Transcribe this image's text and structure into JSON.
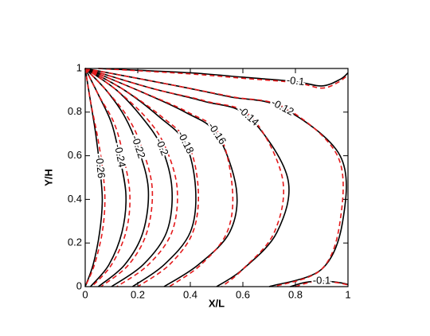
{
  "chart_data": {
    "type": "contour",
    "xlabel": "X/L",
    "ylabel": "Y/H",
    "xlim": [
      0,
      1
    ],
    "ylim": [
      0,
      1
    ],
    "xticks": [
      0,
      0.2,
      0.4,
      0.6,
      0.8,
      1
    ],
    "yticks": [
      0,
      0.2,
      0.4,
      0.6,
      0.8,
      1
    ],
    "series": [
      {
        "color": "#000000",
        "dashed": false,
        "contours": [
          {
            "level": -0.26,
            "x": [
              0,
              0.02,
              0.04,
              0.055,
              0.065,
              0.055,
              0.03,
              0
            ],
            "y": [
              1,
              0.85,
              0.7,
              0.55,
              0.4,
              0.25,
              0.1,
              0
            ]
          },
          {
            "level": -0.24,
            "x": [
              0,
              0.05,
              0.1,
              0.13,
              0.155,
              0.14,
              0.09,
              0.02
            ],
            "y": [
              1,
              0.88,
              0.75,
              0.6,
              0.42,
              0.25,
              0.1,
              0
            ]
          },
          {
            "level": -0.22,
            "x": [
              0,
              0.08,
              0.15,
              0.2,
              0.24,
              0.22,
              0.15,
              0.05
            ],
            "y": [
              1,
              0.9,
              0.78,
              0.64,
              0.45,
              0.25,
              0.1,
              0
            ]
          },
          {
            "level": -0.2,
            "x": [
              0,
              0.12,
              0.22,
              0.29,
              0.33,
              0.31,
              0.22,
              0.1
            ],
            "y": [
              1,
              0.9,
              0.77,
              0.64,
              0.45,
              0.25,
              0.1,
              0
            ]
          },
          {
            "level": -0.18,
            "x": [
              0,
              0.15,
              0.28,
              0.38,
              0.42,
              0.4,
              0.3,
              0.18
            ],
            "y": [
              1,
              0.9,
              0.78,
              0.66,
              0.45,
              0.25,
              0.1,
              0
            ]
          },
          {
            "level": -0.16,
            "x": [
              0,
              0.2,
              0.38,
              0.5,
              0.575,
              0.55,
              0.43,
              0.3
            ],
            "y": [
              1,
              0.9,
              0.8,
              0.7,
              0.45,
              0.25,
              0.1,
              0
            ]
          },
          {
            "level": -0.14,
            "x": [
              0,
              0.25,
              0.45,
              0.62,
              0.77,
              0.73,
              0.6,
              0.5
            ],
            "y": [
              1,
              0.91,
              0.85,
              0.78,
              0.5,
              0.25,
              0.08,
              0
            ]
          },
          {
            "level": -0.12,
            "x": [
              0,
              0.35,
              0.55,
              0.75,
              0.97,
              0.98,
              0.9,
              0.7
            ],
            "y": [
              1,
              0.92,
              0.87,
              0.82,
              0.6,
              0.3,
              0.08,
              0
            ]
          },
          {
            "level": -0.1,
            "x": [
              0.05,
              0.4,
              0.6,
              0.8,
              0.9,
              0.97,
              1
            ],
            "y": [
              1,
              0.98,
              0.96,
              0.94,
              0.92,
              0.95,
              0.98
            ]
          },
          {
            "level": -0.1,
            "x": [
              0.78,
              0.84,
              0.9,
              0.96,
              1
            ],
            "y": [
              0,
              0.02,
              0.025,
              0.02,
              0.01
            ]
          }
        ]
      },
      {
        "color": "#e41a1c",
        "dashed": true,
        "contours": [
          {
            "x": [
              0,
              0.02,
              0.045,
              0.065,
              0.075,
              0.065,
              0.035,
              0
            ],
            "y": [
              1,
              0.85,
              0.7,
              0.55,
              0.4,
              0.25,
              0.1,
              0
            ]
          },
          {
            "x": [
              0,
              0.05,
              0.11,
              0.145,
              0.17,
              0.155,
              0.1,
              0.025
            ],
            "y": [
              1,
              0.88,
              0.75,
              0.6,
              0.42,
              0.25,
              0.1,
              0
            ]
          },
          {
            "x": [
              0,
              0.08,
              0.16,
              0.215,
              0.255,
              0.235,
              0.165,
              0.06
            ],
            "y": [
              1,
              0.9,
              0.78,
              0.64,
              0.45,
              0.25,
              0.1,
              0
            ]
          },
          {
            "x": [
              0,
              0.12,
              0.235,
              0.305,
              0.35,
              0.33,
              0.24,
              0.12
            ],
            "y": [
              1,
              0.9,
              0.77,
              0.64,
              0.45,
              0.25,
              0.1,
              0
            ]
          },
          {
            "x": [
              0,
              0.15,
              0.29,
              0.39,
              0.43,
              0.41,
              0.32,
              0.2
            ],
            "y": [
              1,
              0.9,
              0.78,
              0.66,
              0.45,
              0.25,
              0.1,
              0
            ]
          },
          {
            "x": [
              0,
              0.2,
              0.39,
              0.51,
              0.56,
              0.54,
              0.44,
              0.32
            ],
            "y": [
              1,
              0.9,
              0.8,
              0.7,
              0.45,
              0.25,
              0.1,
              0
            ]
          },
          {
            "x": [
              0,
              0.25,
              0.46,
              0.63,
              0.75,
              0.72,
              0.6,
              0.52
            ],
            "y": [
              1,
              0.91,
              0.85,
              0.78,
              0.5,
              0.25,
              0.08,
              0
            ]
          },
          {
            "x": [
              0,
              0.35,
              0.56,
              0.76,
              0.96,
              0.97,
              0.9,
              0.72
            ],
            "y": [
              1,
              0.92,
              0.87,
              0.82,
              0.6,
              0.3,
              0.08,
              0
            ]
          },
          {
            "x": [
              0.05,
              0.4,
              0.6,
              0.8,
              0.9,
              0.96,
              1
            ],
            "y": [
              1,
              0.975,
              0.955,
              0.935,
              0.91,
              0.935,
              0.97
            ]
          },
          {
            "x": [
              0.8,
              0.85,
              0.9,
              0.96,
              1
            ],
            "y": [
              0,
              0.018,
              0.022,
              0.018,
              0.008
            ]
          }
        ]
      }
    ]
  }
}
